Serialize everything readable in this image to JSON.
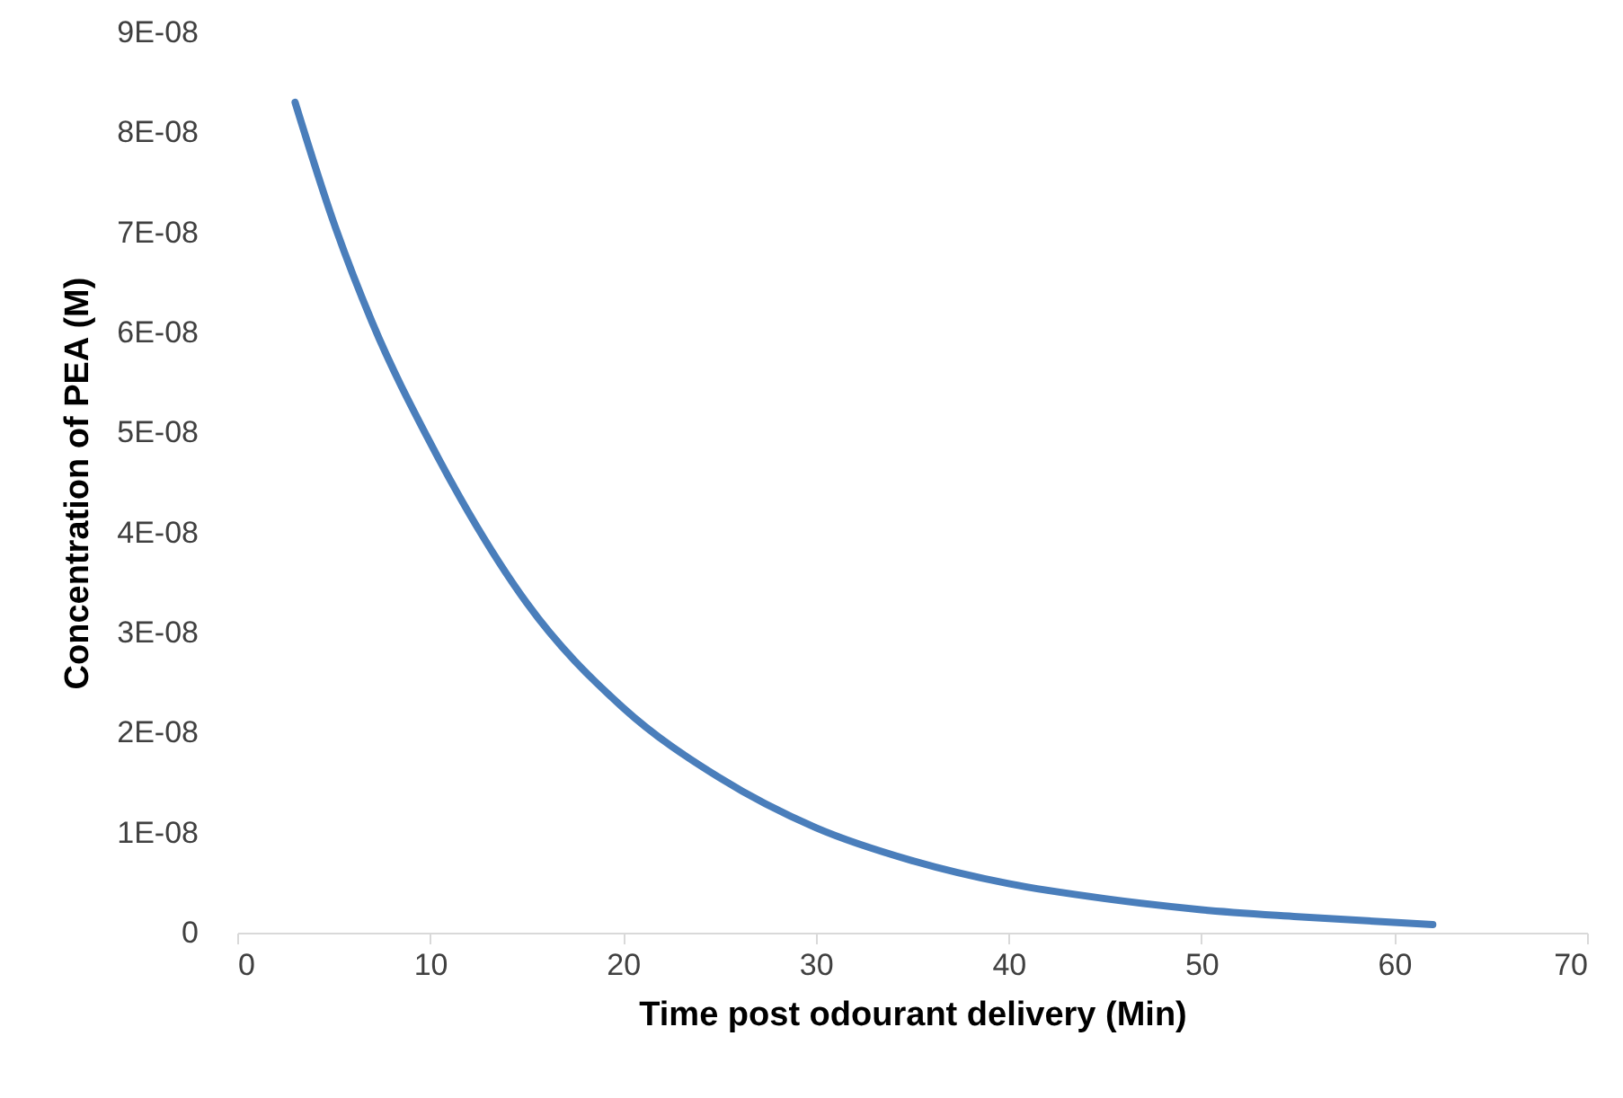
{
  "chart_data": {
    "type": "line",
    "xlabel": "Time post odourant delivery (Min)",
    "ylabel": "Concentration of PEA (M)",
    "x": [
      3,
      5,
      7,
      10,
      12,
      15,
      20,
      25,
      30,
      35,
      40,
      45,
      50,
      55,
      62
    ],
    "series": [
      {
        "color": "#4a7ebb",
        "values": [
          8.3e-08,
          7.1e-08,
          6.1e-08,
          4.9e-08,
          4.2e-08,
          3.3e-08,
          2.25e-08,
          1.55e-08,
          1.05e-08,
          7.2e-09,
          4.9e-09,
          3.4e-09,
          2.3e-09,
          1.6e-09,
          8e-10
        ]
      }
    ],
    "xlim": [
      0,
      70
    ],
    "xticks": [
      0,
      10,
      20,
      30,
      40,
      50,
      60,
      70
    ],
    "ylim": [
      0,
      9e-08
    ],
    "yticks": [
      0,
      {
        "value": 1e-08,
        "label": "1E-08"
      },
      {
        "value": 2e-08,
        "label": "2E-08"
      },
      {
        "value": 3e-08,
        "label": "3E-08"
      },
      {
        "value": 4e-08,
        "label": "4E-08"
      },
      {
        "value": 5e-08,
        "label": "5E-08"
      },
      {
        "value": 6e-08,
        "label": "6E-08"
      },
      {
        "value": 7e-08,
        "label": "7E-08"
      },
      {
        "value": 8e-08,
        "label": "8E-08"
      },
      {
        "value": 9e-08,
        "label": "9E-08"
      }
    ],
    "line_style": "solid"
  }
}
